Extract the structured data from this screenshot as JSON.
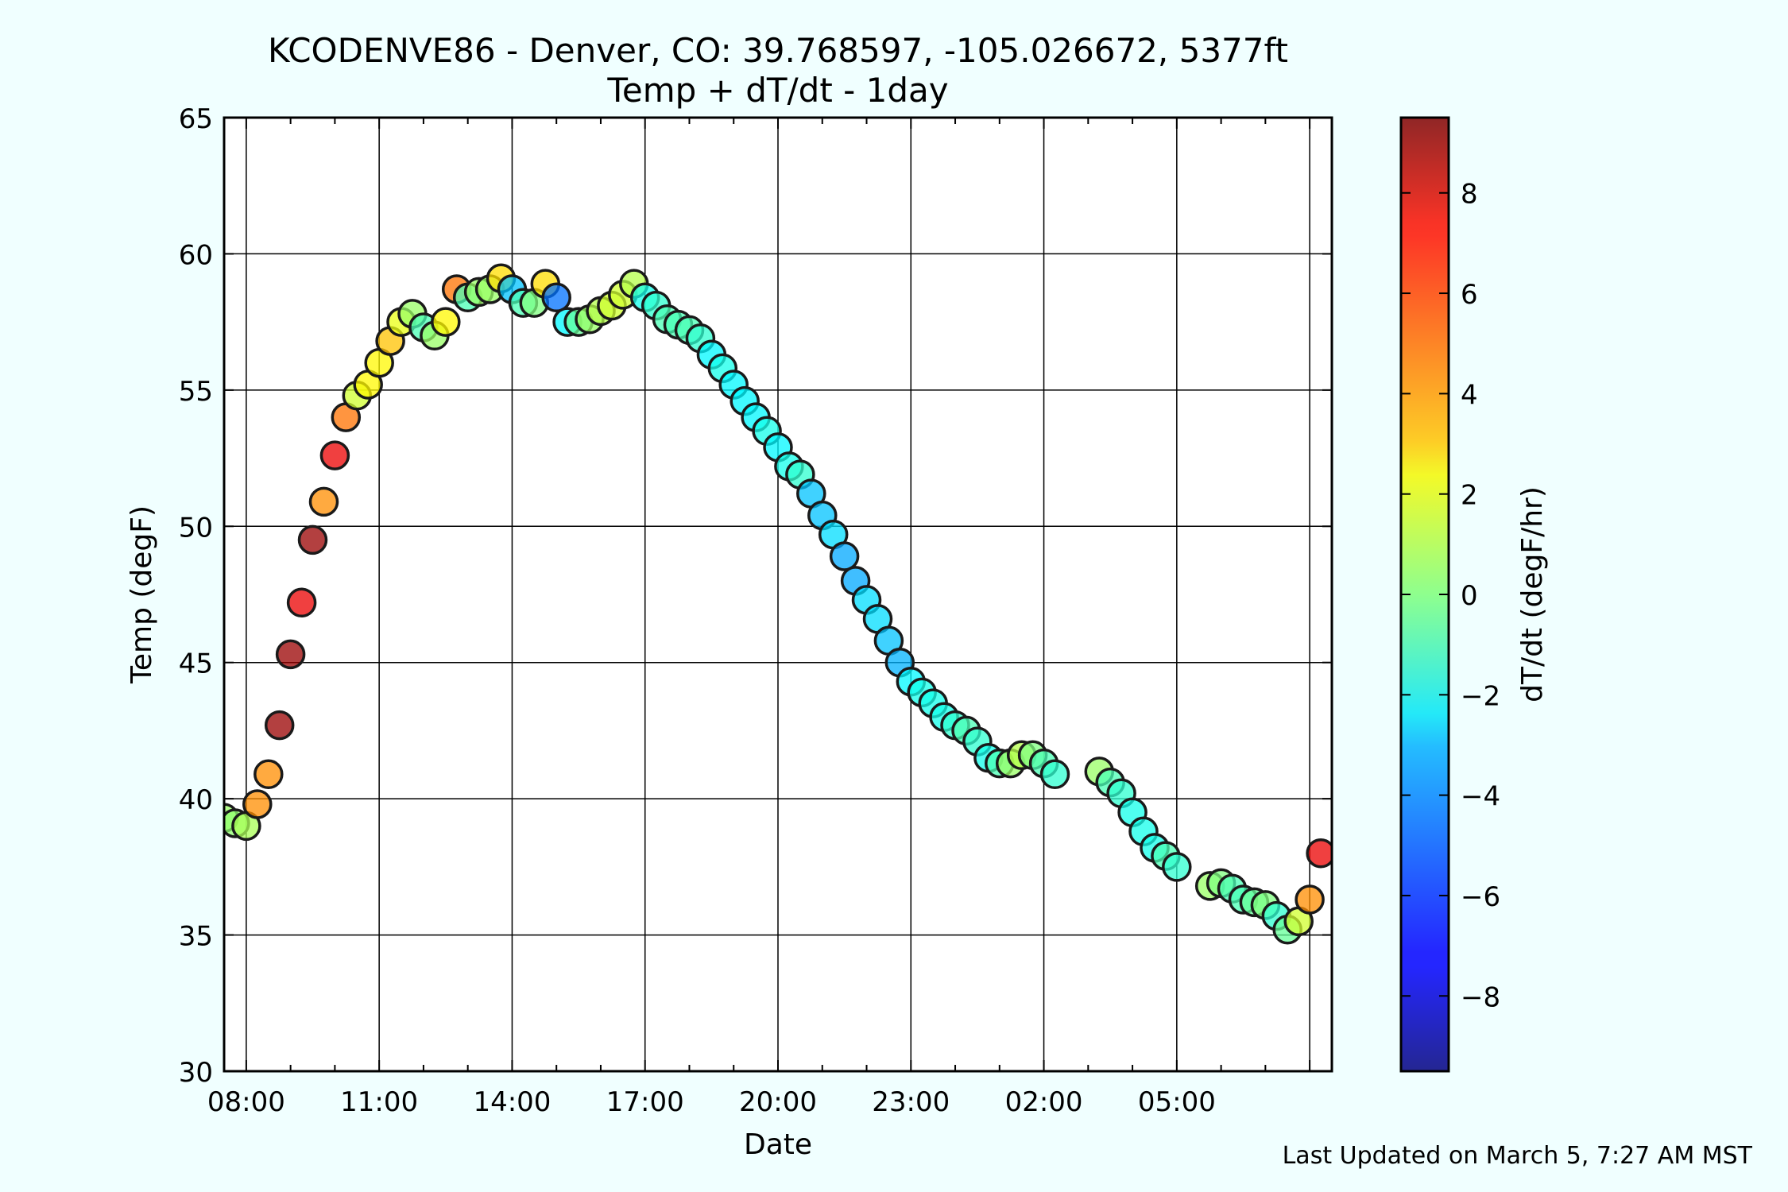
{
  "chart_data": {
    "type": "scatter",
    "title": "KCODENVE86 - Denver, CO: 39.768597, -105.026672, 5377ft",
    "subtitle": "Temp + dT/dt - 1day",
    "xlabel": "Date",
    "ylabel": "Temp (degF)",
    "ylim": [
      30,
      65
    ],
    "yticks": [
      "30",
      "35",
      "40",
      "45",
      "50",
      "55",
      "60",
      "65"
    ],
    "x_range": [
      "2025-03-04 06:30",
      "2025-03-05 07:30"
    ],
    "xtick_labels": [
      "08:00",
      "11:00",
      "14:00",
      "17:00",
      "20:00",
      "23:00",
      "02:00",
      "05:00"
    ],
    "grid": true,
    "marker_color_scale": "jet",
    "colorbar": {
      "label": "dT/dt (degF/hr)",
      "range": [
        -9.5,
        9.5
      ],
      "ticks": [
        "−8",
        "−6",
        "−4",
        "−2",
        "0",
        "2",
        "4",
        "6",
        "8"
      ]
    },
    "footer": "Last Updated on March 5, 7:27 AM MST",
    "points": [
      {
        "t": "06:30",
        "temp": 39.3,
        "dtdt": 0.5
      },
      {
        "t": "06:45",
        "temp": 39.1,
        "dtdt": 0.3
      },
      {
        "t": "07:00",
        "temp": 39.0,
        "dtdt": 0.8
      },
      {
        "t": "07:15",
        "temp": 39.8,
        "dtdt": 4.5
      },
      {
        "t": "07:30",
        "temp": 40.9,
        "dtdt": 4.5
      },
      {
        "t": "07:45",
        "temp": 42.7,
        "dtdt": 9.0
      },
      {
        "t": "08:00",
        "temp": 45.3,
        "dtdt": 9.0
      },
      {
        "t": "08:15",
        "temp": 47.2,
        "dtdt": 7.5
      },
      {
        "t": "08:30",
        "temp": 49.5,
        "dtdt": 9.0
      },
      {
        "t": "08:45",
        "temp": 50.9,
        "dtdt": 4.5
      },
      {
        "t": "09:00",
        "temp": 52.6,
        "dtdt": 7.5
      },
      {
        "t": "09:15",
        "temp": 54.0,
        "dtdt": 5.0
      },
      {
        "t": "09:30",
        "temp": 54.8,
        "dtdt": 1.5
      },
      {
        "t": "09:45",
        "temp": 55.2,
        "dtdt": 2.5
      },
      {
        "t": "10:00",
        "temp": 56.0,
        "dtdt": 2.5
      },
      {
        "t": "10:15",
        "temp": 56.8,
        "dtdt": 3.5
      },
      {
        "t": "10:30",
        "temp": 57.5,
        "dtdt": 2.0
      },
      {
        "t": "10:45",
        "temp": 57.8,
        "dtdt": 0.5
      },
      {
        "t": "11:00",
        "temp": 57.3,
        "dtdt": -1.0
      },
      {
        "t": "11:15",
        "temp": 57.0,
        "dtdt": 0.5
      },
      {
        "t": "11:30",
        "temp": 57.5,
        "dtdt": 2.5
      },
      {
        "t": "11:45",
        "temp": 58.7,
        "dtdt": 5.0
      },
      {
        "t": "12:00",
        "temp": 58.4,
        "dtdt": -1.0
      },
      {
        "t": "12:15",
        "temp": 58.6,
        "dtdt": 0.5
      },
      {
        "t": "12:30",
        "temp": 58.7,
        "dtdt": 0.5
      },
      {
        "t": "12:45",
        "temp": 59.1,
        "dtdt": 3.0
      },
      {
        "t": "13:00",
        "temp": 58.7,
        "dtdt": -3.5
      },
      {
        "t": "13:15",
        "temp": 58.2,
        "dtdt": -1.0
      },
      {
        "t": "13:30",
        "temp": 58.2,
        "dtdt": 0.0
      },
      {
        "t": "13:45",
        "temp": 58.9,
        "dtdt": 3.0
      },
      {
        "t": "14:00",
        "temp": 58.4,
        "dtdt": -5.0
      },
      {
        "t": "14:15",
        "temp": 57.5,
        "dtdt": -2.5
      },
      {
        "t": "14:30",
        "temp": 57.5,
        "dtdt": -0.5
      },
      {
        "t": "14:45",
        "temp": 57.6,
        "dtdt": 0.5
      },
      {
        "t": "15:00",
        "temp": 57.9,
        "dtdt": 1.0
      },
      {
        "t": "15:15",
        "temp": 58.1,
        "dtdt": 1.5
      },
      {
        "t": "15:30",
        "temp": 58.5,
        "dtdt": 1.5
      },
      {
        "t": "15:45",
        "temp": 58.9,
        "dtdt": 1.0
      },
      {
        "t": "16:00",
        "temp": 58.4,
        "dtdt": -2.0
      },
      {
        "t": "16:15",
        "temp": 58.1,
        "dtdt": -1.5
      },
      {
        "t": "16:30",
        "temp": 57.6,
        "dtdt": -1.0
      },
      {
        "t": "16:45",
        "temp": 57.4,
        "dtdt": -1.0
      },
      {
        "t": "17:00",
        "temp": 57.2,
        "dtdt": -1.0
      },
      {
        "t": "17:15",
        "temp": 56.9,
        "dtdt": -1.5
      },
      {
        "t": "17:30",
        "temp": 56.3,
        "dtdt": -2.5
      },
      {
        "t": "17:45",
        "temp": 55.8,
        "dtdt": -2.0
      },
      {
        "t": "18:00",
        "temp": 55.2,
        "dtdt": -2.5
      },
      {
        "t": "18:15",
        "temp": 54.6,
        "dtdt": -2.5
      },
      {
        "t": "18:30",
        "temp": 54.0,
        "dtdt": -2.5
      },
      {
        "t": "18:45",
        "temp": 53.5,
        "dtdt": -2.0
      },
      {
        "t": "19:00",
        "temp": 52.9,
        "dtdt": -2.5
      },
      {
        "t": "19:15",
        "temp": 52.2,
        "dtdt": -2.0
      },
      {
        "t": "19:30",
        "temp": 51.9,
        "dtdt": -1.5
      },
      {
        "t": "19:45",
        "temp": 51.2,
        "dtdt": -3.5
      },
      {
        "t": "20:00",
        "temp": 50.4,
        "dtdt": -3.5
      },
      {
        "t": "20:15",
        "temp": 49.7,
        "dtdt": -3.0
      },
      {
        "t": "20:30",
        "temp": 48.9,
        "dtdt": -4.0
      },
      {
        "t": "20:45",
        "temp": 48.0,
        "dtdt": -4.0
      },
      {
        "t": "21:00",
        "temp": 47.3,
        "dtdt": -3.0
      },
      {
        "t": "21:15",
        "temp": 46.6,
        "dtdt": -3.0
      },
      {
        "t": "21:30",
        "temp": 45.8,
        "dtdt": -3.5
      },
      {
        "t": "21:45",
        "temp": 45.0,
        "dtdt": -3.8
      },
      {
        "t": "22:00",
        "temp": 44.3,
        "dtdt": -2.5
      },
      {
        "t": "22:15",
        "temp": 43.9,
        "dtdt": -2.0
      },
      {
        "t": "22:30",
        "temp": 43.5,
        "dtdt": -2.0
      },
      {
        "t": "22:45",
        "temp": 43.0,
        "dtdt": -2.0
      },
      {
        "t": "23:00",
        "temp": 42.7,
        "dtdt": -1.5
      },
      {
        "t": "23:15",
        "temp": 42.5,
        "dtdt": -1.0
      },
      {
        "t": "23:30",
        "temp": 42.1,
        "dtdt": -1.5
      },
      {
        "t": "23:45",
        "temp": 41.5,
        "dtdt": -2.0
      },
      {
        "t": "00:00",
        "temp": 41.3,
        "dtdt": -1.0
      },
      {
        "t": "00:15",
        "temp": 41.3,
        "dtdt": 0.5
      },
      {
        "t": "00:30",
        "temp": 41.6,
        "dtdt": 1.0
      },
      {
        "t": "00:45",
        "temp": 41.6,
        "dtdt": 0.0
      },
      {
        "t": "01:00",
        "temp": 41.3,
        "dtdt": -1.0
      },
      {
        "t": "01:15",
        "temp": 40.9,
        "dtdt": -1.5
      },
      {
        "t": "02:15",
        "temp": 41.0,
        "dtdt": 0.5
      },
      {
        "t": "02:30",
        "temp": 40.6,
        "dtdt": -1.0
      },
      {
        "t": "02:45",
        "temp": 40.2,
        "dtdt": -1.5
      },
      {
        "t": "03:00",
        "temp": 39.5,
        "dtdt": -2.0
      },
      {
        "t": "03:15",
        "temp": 38.8,
        "dtdt": -2.0
      },
      {
        "t": "03:30",
        "temp": 38.2,
        "dtdt": -2.0
      },
      {
        "t": "03:45",
        "temp": 37.9,
        "dtdt": -1.0
      },
      {
        "t": "04:00",
        "temp": 37.5,
        "dtdt": -1.5
      },
      {
        "t": "04:45",
        "temp": 36.8,
        "dtdt": 0.5
      },
      {
        "t": "05:00",
        "temp": 36.9,
        "dtdt": 0.0
      },
      {
        "t": "05:15",
        "temp": 36.7,
        "dtdt": -1.0
      },
      {
        "t": "05:30",
        "temp": 36.3,
        "dtdt": -1.0
      },
      {
        "t": "05:45",
        "temp": 36.2,
        "dtdt": -0.5
      },
      {
        "t": "06:00",
        "temp": 36.1,
        "dtdt": 0.0
      },
      {
        "t": "06:15",
        "temp": 35.7,
        "dtdt": -1.5
      },
      {
        "t": "06:30",
        "temp": 35.2,
        "dtdt": -0.5
      },
      {
        "t": "06:45",
        "temp": 35.5,
        "dtdt": 1.5
      },
      {
        "t": "07:00",
        "temp": 36.3,
        "dtdt": 4.5
      },
      {
        "t": "07:15",
        "temp": 38.0,
        "dtdt": 7.5
      }
    ]
  }
}
